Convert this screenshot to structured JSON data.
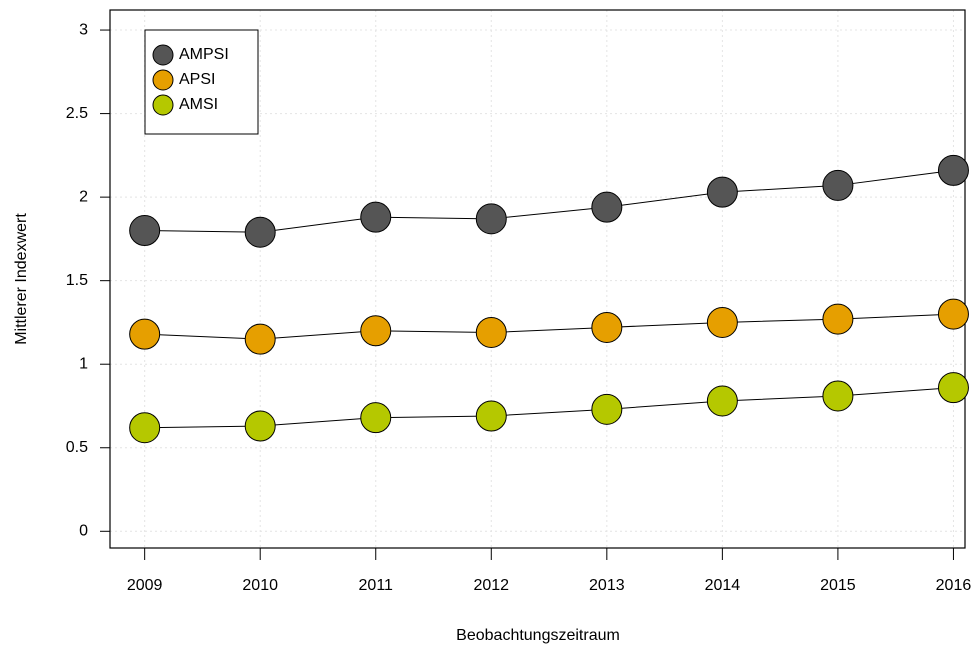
{
  "chart_data": {
    "type": "line",
    "xlabel": "Beobachtungszeitraum",
    "ylabel": "Mittlerer Indexwert",
    "x": [
      2009,
      2010,
      2011,
      2012,
      2013,
      2014,
      2015,
      2016
    ],
    "series": [
      {
        "name": "AMPSI",
        "color": "#555555",
        "values": [
          1.8,
          1.79,
          1.88,
          1.87,
          1.94,
          2.03,
          2.07,
          2.16
        ]
      },
      {
        "name": "APSI",
        "color": "#E69F00",
        "values": [
          1.18,
          1.15,
          1.2,
          1.19,
          1.22,
          1.25,
          1.27,
          1.3
        ]
      },
      {
        "name": "AMSI",
        "color": "#B5C800",
        "values": [
          0.62,
          0.63,
          0.68,
          0.69,
          0.73,
          0.78,
          0.81,
          0.86
        ]
      }
    ],
    "xlim": [
      2008.7,
      2016.1
    ],
    "ylim": [
      -0.1,
      3.12
    ],
    "xticks": [
      2009,
      2010,
      2011,
      2012,
      2013,
      2014,
      2015,
      2016
    ],
    "yticks": [
      0,
      0.5,
      1,
      1.5,
      2,
      2.5,
      3
    ],
    "grid": true,
    "legend": "top-left"
  }
}
